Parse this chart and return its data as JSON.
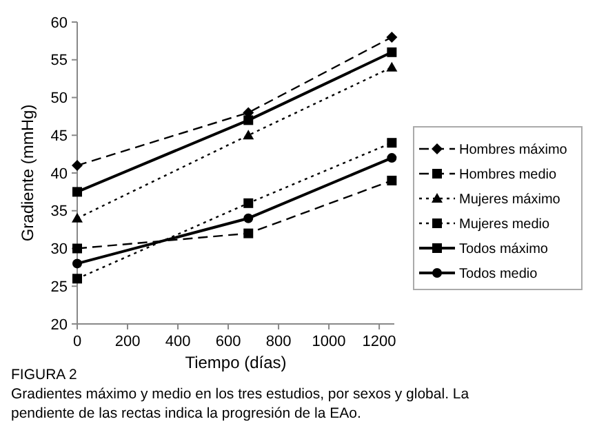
{
  "chart_data": {
    "type": "line",
    "xlabel": "Tiempo (días)",
    "ylabel": "Gradiente (mmHg)",
    "x": [
      0,
      680,
      1250
    ],
    "xlim": [
      0,
      1260
    ],
    "xticks": [
      0,
      200,
      400,
      600,
      800,
      1000,
      1200
    ],
    "ylim": [
      20,
      60
    ],
    "yticks": [
      20,
      25,
      30,
      35,
      40,
      45,
      50,
      55,
      60
    ],
    "legend": "right",
    "color": "#000000",
    "series": [
      {
        "name": "Hombres máximo",
        "values": [
          41,
          48,
          58
        ],
        "marker": "diamond",
        "line_style": "dashed"
      },
      {
        "name": "Hombres medio",
        "values": [
          30,
          32,
          39
        ],
        "marker": "square",
        "line_style": "dashed"
      },
      {
        "name": "Mujeres máximo",
        "values": [
          34,
          45,
          54
        ],
        "marker": "triangle",
        "line_style": "dotted"
      },
      {
        "name": "Mujeres medio",
        "values": [
          26,
          36,
          44
        ],
        "marker": "square",
        "line_style": "dotted"
      },
      {
        "name": "Todos máximo",
        "values": [
          37.5,
          47,
          56
        ],
        "marker": "square",
        "line_style": "solid"
      },
      {
        "name": "Todos medio",
        "values": [
          28,
          34,
          42
        ],
        "marker": "circle",
        "line_style": "solid"
      }
    ],
    "annotations": [
      "FIGURA 2",
      "Gradientes máximo y medio en los tres estudios, por sexos y global. La",
      "pendiente de las rectas indica la progresión de la EAo."
    ]
  }
}
